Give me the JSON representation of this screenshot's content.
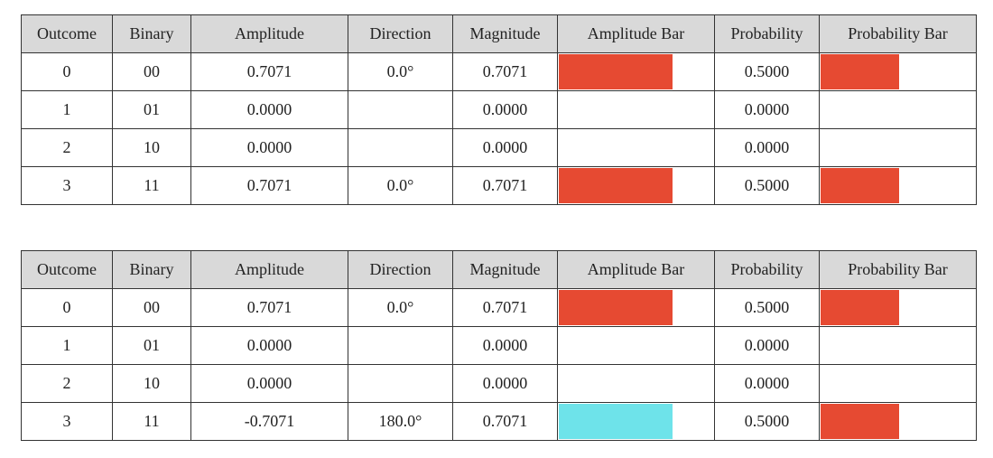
{
  "columns": [
    "Outcome",
    "Binary",
    "Amplitude",
    "Direction",
    "Magnitude",
    "Amplitude Bar",
    "Probability",
    "Probability Bar"
  ],
  "colors": {
    "positive": "#e64a32",
    "negative": "#6ee3ea",
    "header_bg": "#d9d9d9",
    "border": "#333333"
  },
  "tables": [
    {
      "rows": [
        {
          "outcome": "0",
          "binary": "00",
          "amplitude": "0.7071",
          "direction": "0.0°",
          "magnitude": "0.7071",
          "probability": "0.5000",
          "amp_fill": 0.7071,
          "amp_sign": "positive",
          "prob_fill": 0.5
        },
        {
          "outcome": "1",
          "binary": "01",
          "amplitude": "0.0000",
          "direction": "",
          "magnitude": "0.0000",
          "probability": "0.0000",
          "amp_fill": 0,
          "amp_sign": "positive",
          "prob_fill": 0
        },
        {
          "outcome": "2",
          "binary": "10",
          "amplitude": "0.0000",
          "direction": "",
          "magnitude": "0.0000",
          "probability": "0.0000",
          "amp_fill": 0,
          "amp_sign": "positive",
          "prob_fill": 0
        },
        {
          "outcome": "3",
          "binary": "11",
          "amplitude": "0.7071",
          "direction": "0.0°",
          "magnitude": "0.7071",
          "probability": "0.5000",
          "amp_fill": 0.7071,
          "amp_sign": "positive",
          "prob_fill": 0.5
        }
      ]
    },
    {
      "rows": [
        {
          "outcome": "0",
          "binary": "00",
          "amplitude": "0.7071",
          "direction": "0.0°",
          "magnitude": "0.7071",
          "probability": "0.5000",
          "amp_fill": 0.7071,
          "amp_sign": "positive",
          "prob_fill": 0.5
        },
        {
          "outcome": "1",
          "binary": "01",
          "amplitude": "0.0000",
          "direction": "",
          "magnitude": "0.0000",
          "probability": "0.0000",
          "amp_fill": 0,
          "amp_sign": "positive",
          "prob_fill": 0
        },
        {
          "outcome": "2",
          "binary": "10",
          "amplitude": "0.0000",
          "direction": "",
          "magnitude": "0.0000",
          "probability": "0.0000",
          "amp_fill": 0,
          "amp_sign": "positive",
          "prob_fill": 0
        },
        {
          "outcome": "3",
          "binary": "11",
          "amplitude": "-0.7071",
          "direction": "180.0°",
          "magnitude": "0.7071",
          "probability": "0.5000",
          "amp_fill": 0.7071,
          "amp_sign": "negative",
          "prob_fill": 0.5
        }
      ]
    }
  ]
}
